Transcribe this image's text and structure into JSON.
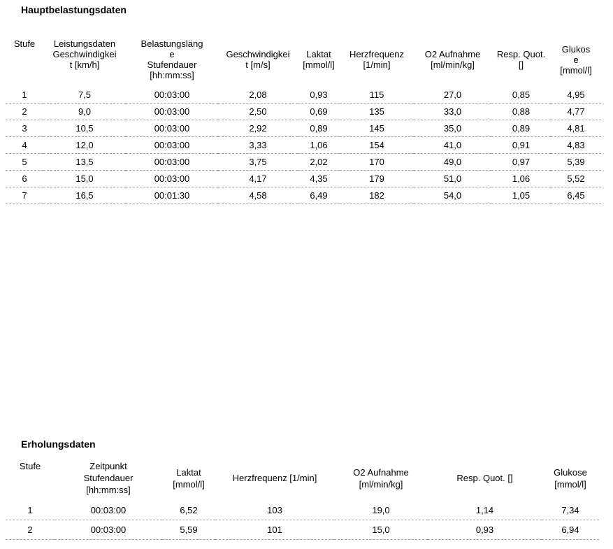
{
  "page": {
    "background_color": "#ffffff",
    "text_color": "#000000",
    "divider_color": "#9c9c9c"
  },
  "main_table": {
    "title": "Hauptbelastungsdaten",
    "columns": [
      "Stufe",
      "Leistungsdaten\nGeschwindigkei\nt [km/h]",
      "Belastungsläng\ne\nStufendauer\n[hh:mm:ss]",
      "Geschwindigkei\nt [m/s]",
      "Laktat\n[mmol/l]",
      "Herzfrequenz\n[1/min]",
      "O2 Aufnahme\n[ml/min/kg]",
      "Resp. Quot.\n[]",
      "Glukos\ne\n[mmol/l]"
    ],
    "rows": [
      [
        "1",
        "7,5",
        "00:03:00",
        "2,08",
        "0,93",
        "115",
        "27,0",
        "0,85",
        "4,95"
      ],
      [
        "2",
        "9,0",
        "00:03:00",
        "2,50",
        "0,69",
        "135",
        "33,0",
        "0,88",
        "4,77"
      ],
      [
        "3",
        "10,5",
        "00:03:00",
        "2,92",
        "0,89",
        "145",
        "35,0",
        "0,89",
        "4,81"
      ],
      [
        "4",
        "12,0",
        "00:03:00",
        "3,33",
        "1,06",
        "154",
        "41,0",
        "0,91",
        "4,83"
      ],
      [
        "5",
        "13,5",
        "00:03:00",
        "3,75",
        "2,02",
        "170",
        "49,0",
        "0,97",
        "5,39"
      ],
      [
        "6",
        "15,0",
        "00:03:00",
        "4,17",
        "4,35",
        "179",
        "51,0",
        "1,06",
        "5,52"
      ],
      [
        "7",
        "16,5",
        "00:01:30",
        "4,58",
        "6,49",
        "182",
        "54,0",
        "1,05",
        "6,45"
      ]
    ]
  },
  "recovery_table": {
    "title": "Erholungsdaten",
    "columns": [
      "Stufe",
      "Zeitpunkt\nStufendauer\n[hh:mm:ss]",
      "Laktat\n[mmol/l]",
      "Herzfrequenz [1/min]",
      "O2 Aufnahme\n[ml/min/kg]",
      "Resp. Quot. []",
      "Glukose\n[mmol/l]"
    ],
    "rows": [
      [
        "1",
        "00:03:00",
        "6,52",
        "103",
        "19,0",
        "1,14",
        "7,34"
      ],
      [
        "2",
        "00:03:00",
        "5,59",
        "101",
        "15,0",
        "0,93",
        "6,94"
      ]
    ]
  }
}
